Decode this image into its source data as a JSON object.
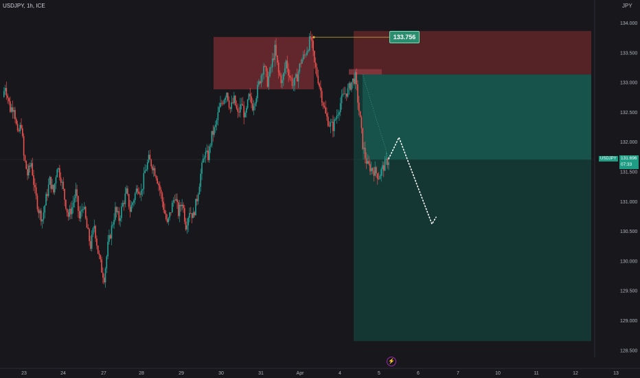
{
  "header": {
    "ticker": "USDJPY, 1h, ICE",
    "currency": "JPY"
  },
  "labels": {
    "high_tag": "133.756",
    "last_symbol": "USDJPY",
    "last_price": "131.696",
    "countdown": "07:33",
    "bolt": "⚡"
  },
  "colors": {
    "background": "#18171c",
    "up": "#26a69a",
    "down": "#ef5350",
    "supply_zone": "#7a2d33",
    "stop_zone": "#5c2528",
    "target_zone": "#135247",
    "projection": "#ffffff"
  },
  "chart_data": {
    "type": "candlestick",
    "title": "",
    "symbol": "USDJPY",
    "timeframe": "1h",
    "source": "ICE",
    "currency": "JPY",
    "y_range": [
      128.4,
      134.2
    ],
    "y_ticks": [
      "134.000",
      "133.500",
      "133.000",
      "132.500",
      "132.000",
      "131.500",
      "131.000",
      "130.500",
      "130.000",
      "129.500",
      "129.000",
      "128.500"
    ],
    "x_ticks": [
      "23",
      "24",
      "27",
      "28",
      "29",
      "30",
      "31",
      "Apr",
      "4",
      "5",
      "6",
      "7",
      "10",
      "11",
      "12",
      "13"
    ],
    "key_prices": {
      "swing_high": 133.756,
      "last": 131.696,
      "swing_low": 129.65
    },
    "price_path": [
      [
        0,
        132.75
      ],
      [
        2,
        132.95
      ],
      [
        6,
        132.55
      ],
      [
        9,
        132.6
      ],
      [
        12,
        132.1
      ],
      [
        15,
        132.3
      ],
      [
        17,
        131.75
      ],
      [
        20,
        131.45
      ],
      [
        23,
        131.65
      ],
      [
        26,
        131.15
      ],
      [
        29,
        130.85
      ],
      [
        32,
        130.7
      ],
      [
        35,
        131.05
      ],
      [
        38,
        131.35
      ],
      [
        41,
        131.15
      ],
      [
        44,
        131.6
      ],
      [
        47,
        131.4
      ],
      [
        50,
        131.05
      ],
      [
        53,
        130.75
      ],
      [
        56,
        130.9
      ],
      [
        59,
        131.15
      ],
      [
        62,
        130.7
      ],
      [
        65,
        130.95
      ],
      [
        68,
        130.55
      ],
      [
        71,
        130.25
      ],
      [
        74,
        130.6
      ],
      [
        77,
        130.15
      ],
      [
        80,
        129.85
      ],
      [
        82,
        129.72
      ],
      [
        85,
        130.25
      ],
      [
        88,
        130.55
      ],
      [
        91,
        130.85
      ],
      [
        94,
        130.7
      ],
      [
        97,
        130.95
      ],
      [
        100,
        131.15
      ],
      [
        103,
        130.85
      ],
      [
        106,
        131.05
      ],
      [
        109,
        131.25
      ],
      [
        112,
        131.15
      ],
      [
        115,
        131.5
      ],
      [
        118,
        131.7
      ],
      [
        121,
        131.6
      ],
      [
        124,
        131.45
      ],
      [
        127,
        131.2
      ],
      [
        130,
        130.9
      ],
      [
        133,
        130.6
      ],
      [
        136,
        130.85
      ],
      [
        139,
        131.1
      ],
      [
        142,
        130.8
      ],
      [
        145,
        131.0
      ],
      [
        148,
        130.6
      ],
      [
        151,
        130.85
      ],
      [
        154,
        130.75
      ],
      [
        157,
        131.05
      ],
      [
        160,
        131.45
      ],
      [
        163,
        131.8
      ],
      [
        166,
        131.75
      ],
      [
        169,
        132.1
      ],
      [
        172,
        132.25
      ],
      [
        175,
        132.55
      ],
      [
        178,
        132.7
      ],
      [
        181,
        132.85
      ],
      [
        184,
        132.55
      ],
      [
        187,
        132.7
      ],
      [
        190,
        132.45
      ],
      [
        193,
        132.65
      ],
      [
        196,
        132.4
      ],
      [
        199,
        132.75
      ],
      [
        202,
        132.6
      ],
      [
        205,
        132.8
      ],
      [
        208,
        133.05
      ],
      [
        211,
        133.3
      ],
      [
        214,
        133.0
      ],
      [
        217,
        133.25
      ],
      [
        220,
        133.55
      ],
      [
        223,
        133.15
      ],
      [
        226,
        133.0
      ],
      [
        229,
        133.35
      ],
      [
        232,
        133.1
      ],
      [
        235,
        132.95
      ],
      [
        238,
        133.1
      ],
      [
        241,
        133.35
      ],
      [
        244,
        133.45
      ],
      [
        247,
        133.62
      ],
      [
        249,
        133.756
      ],
      [
        252,
        133.3
      ],
      [
        255,
        133.05
      ],
      [
        258,
        132.75
      ],
      [
        261,
        132.45
      ],
      [
        264,
        132.3
      ],
      [
        267,
        132.25
      ],
      [
        270,
        132.45
      ],
      [
        273,
        132.65
      ],
      [
        276,
        132.8
      ],
      [
        279,
        132.85
      ],
      [
        282,
        133.0
      ],
      [
        285,
        133.08
      ],
      [
        287,
        132.7
      ],
      [
        289,
        132.35
      ],
      [
        291,
        131.95
      ],
      [
        293,
        131.75
      ],
      [
        295,
        131.6
      ],
      [
        298,
        131.55
      ],
      [
        301,
        131.5
      ],
      [
        304,
        131.42
      ],
      [
        307,
        131.55
      ],
      [
        310,
        131.65
      ],
      [
        312,
        131.696
      ]
    ],
    "annotations": [
      {
        "kind": "supply_zone",
        "price_from": 132.88,
        "price_to": 133.76,
        "time_from": "29 late",
        "time_to": "Apr 3"
      },
      {
        "kind": "position_stop_zone",
        "price_from": 133.13,
        "price_to": 133.86,
        "time_from": "Apr 4",
        "time_to": "13"
      },
      {
        "kind": "position_target_zone",
        "price_from": 128.65,
        "price_to": 133.13,
        "time_from": "Apr 4",
        "time_to": "13"
      },
      {
        "kind": "projection_path",
        "points": [
          [
            131.696,
            "5"
          ],
          [
            132.05,
            "5.5"
          ],
          [
            130.6,
            "6"
          ],
          [
            130.7,
            "6.2"
          ]
        ]
      }
    ]
  }
}
